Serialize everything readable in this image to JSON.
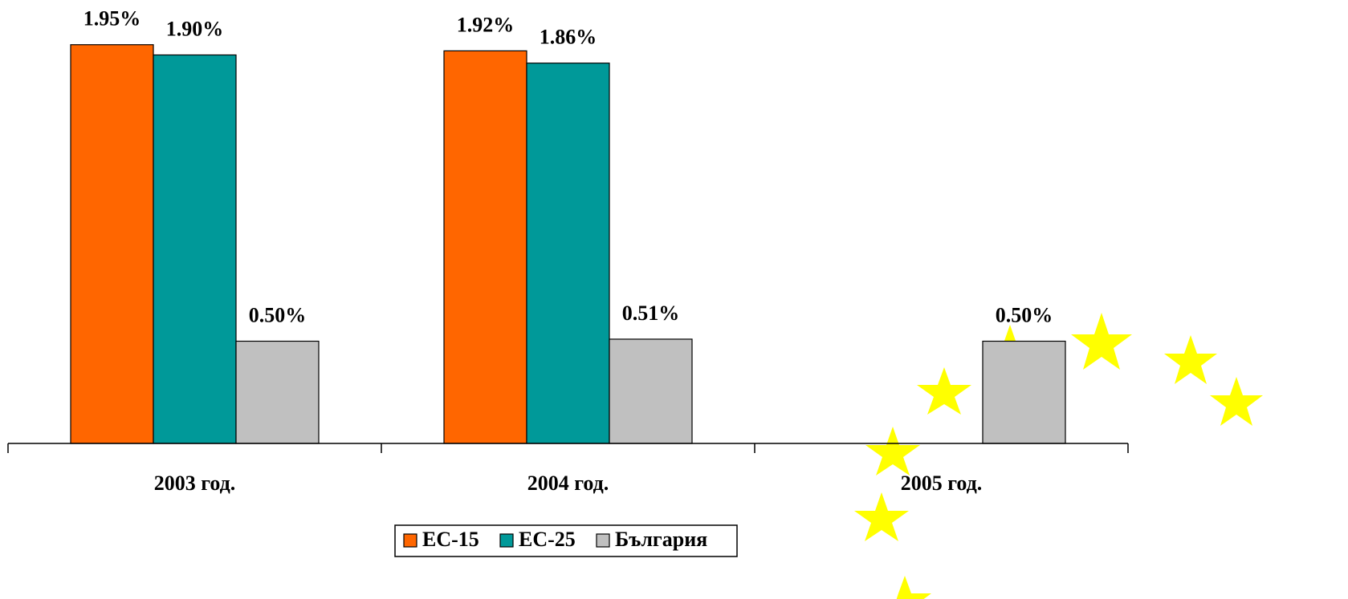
{
  "chart_data": {
    "type": "bar",
    "categories": [
      "2003 год.",
      "2004 год.",
      "2005 год."
    ],
    "series": [
      {
        "name": "ЕС-15",
        "color": "#ff6600",
        "values": [
          1.95,
          1.92,
          null
        ],
        "value_labels": [
          "1.95%",
          "1.92%",
          null
        ]
      },
      {
        "name": "ЕС-25",
        "color": "#009999",
        "values": [
          1.9,
          1.86,
          null
        ],
        "value_labels": [
          "1.90%",
          "1.86%",
          null
        ]
      },
      {
        "name": "България",
        "color": "#c0c0c0",
        "values": [
          0.5,
          0.51,
          0.5
        ],
        "value_labels": [
          "0.50%",
          "0.51%",
          "0.50%"
        ]
      }
    ],
    "ylim": [
      0,
      2.0
    ],
    "grid": false,
    "legend": "bottom"
  }
}
